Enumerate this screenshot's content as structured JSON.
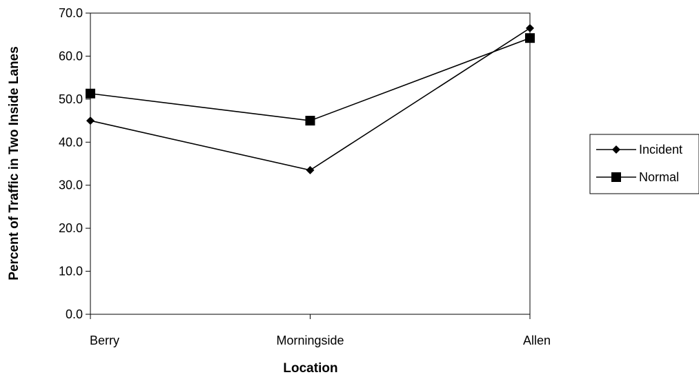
{
  "chart_data": {
    "type": "line",
    "categories": [
      "Berry",
      "Morningside",
      "Allen"
    ],
    "series": [
      {
        "name": "Incident",
        "marker": "diamond",
        "values": [
          45.0,
          33.5,
          66.5
        ]
      },
      {
        "name": "Normal",
        "marker": "square",
        "values": [
          51.3,
          45.0,
          64.2
        ]
      }
    ],
    "xlabel": "Location",
    "ylabel": "Percent of Traffic in Two Inside Lanes",
    "ylim": [
      0,
      70
    ],
    "yticks": [
      "0.0",
      "10.0",
      "20.0",
      "30.0",
      "40.0",
      "50.0",
      "60.0",
      "70.0"
    ],
    "legend": "right",
    "grid": false,
    "colors": {
      "line": "#000000",
      "marker": "#000000"
    }
  }
}
